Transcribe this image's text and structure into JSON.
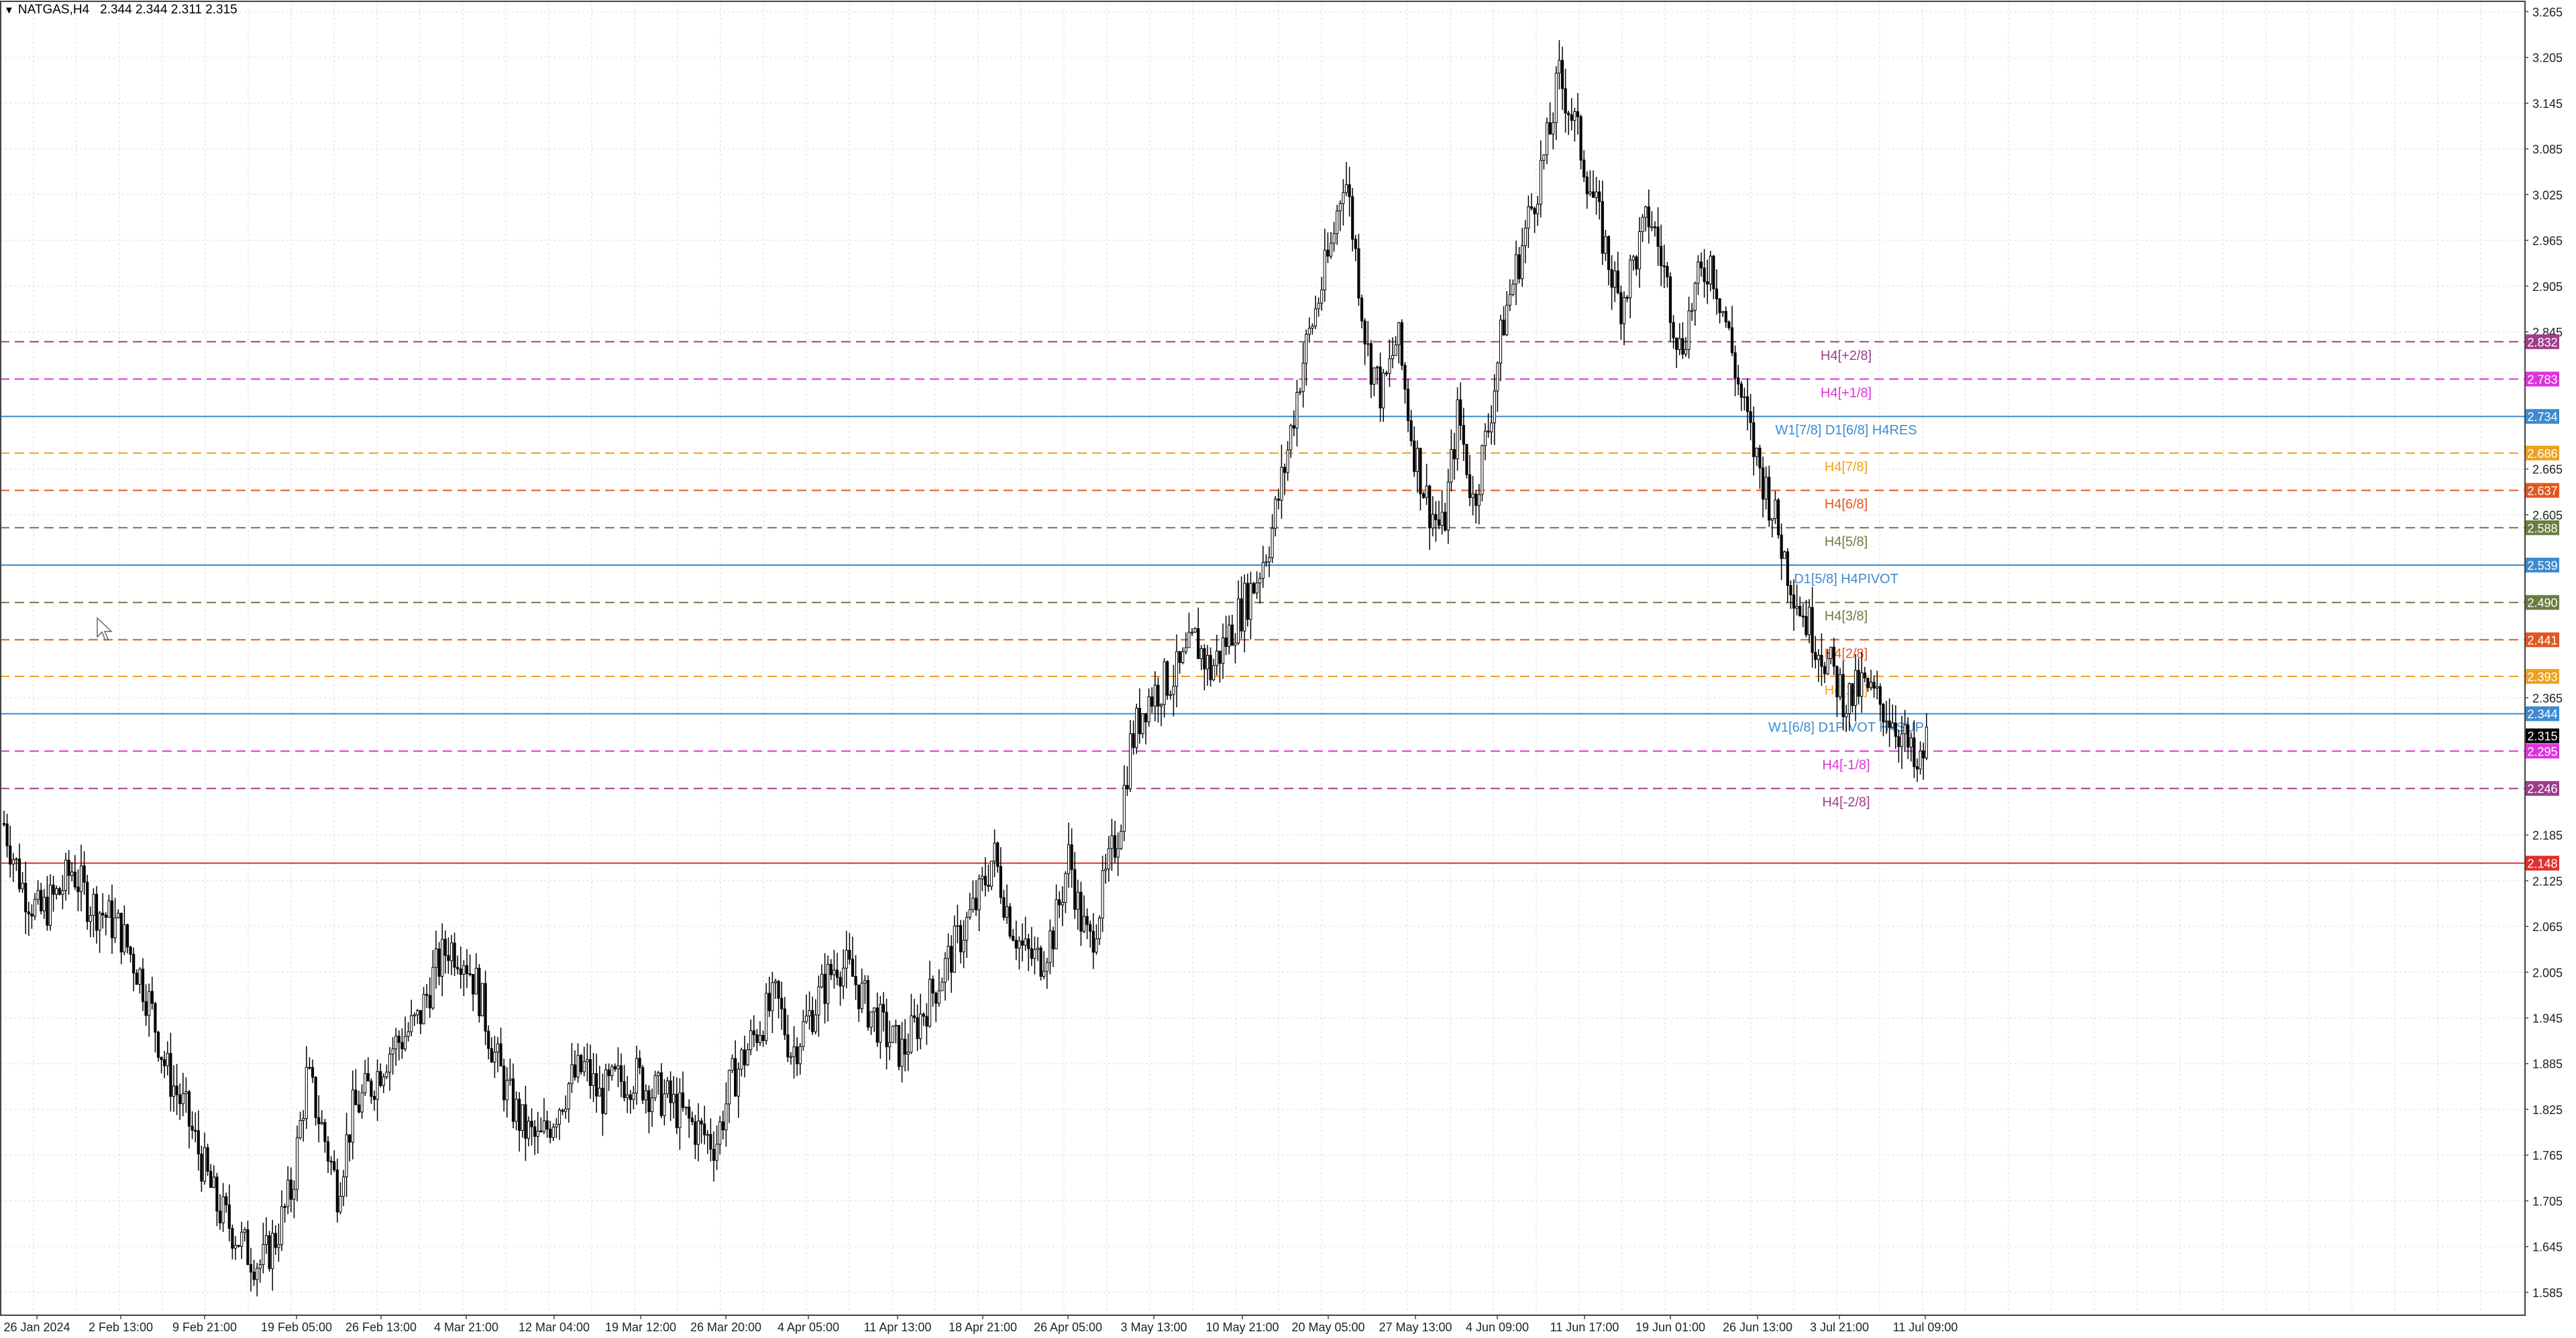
{
  "header": {
    "symbol": "NATGAS,H4",
    "ohlc": "2.344 2.344 2.311 2.315"
  },
  "chart_data": {
    "type": "candlestick",
    "symbol": "NATGAS",
    "timeframe": "H4",
    "ylim": [
      1.555,
      3.275
    ],
    "grid": true,
    "y_ticks": [
      "3.265",
      "3.205",
      "3.145",
      "3.085",
      "3.025",
      "2.965",
      "2.905",
      "2.845",
      "2.665",
      "2.605",
      "2.365",
      "2.185",
      "2.125",
      "2.065",
      "2.005",
      "1.945",
      "1.885",
      "1.825",
      "1.765",
      "1.705",
      "1.645",
      "1.585"
    ],
    "x_ticks": [
      "26 Jan 2024",
      "2 Feb 13:00",
      "9 Feb 21:00",
      "19 Feb 05:00",
      "26 Feb 13:00",
      "4 Mar 21:00",
      "12 Mar 04:00",
      "19 Mar 12:00",
      "26 Mar 20:00",
      "4 Apr 05:00",
      "11 Apr 13:00",
      "18 Apr 21:00",
      "26 Apr 05:00",
      "3 May 13:00",
      "10 May 21:00",
      "20 May 05:00",
      "27 May 13:00",
      "4 Jun 09:00",
      "11 Jun 17:00",
      "19 Jun 01:00",
      "26 Jun 13:00",
      "3 Jul 21:00",
      "11 Jul 09:00"
    ],
    "price_path": [
      [
        0,
        2.2
      ],
      [
        0.007,
        2.12
      ],
      [
        0.014,
        2.08
      ],
      [
        0.022,
        2.11
      ],
      [
        0.027,
        2.14
      ],
      [
        0.033,
        2.1
      ],
      [
        0.04,
        2.08
      ],
      [
        0.046,
        2.06
      ],
      [
        0.054,
        2.0
      ],
      [
        0.058,
        1.96
      ],
      [
        0.064,
        1.88
      ],
      [
        0.072,
        1.82
      ],
      [
        0.078,
        1.76
      ],
      [
        0.084,
        1.7
      ],
      [
        0.09,
        1.67
      ],
      [
        0.096,
        1.64
      ],
      [
        0.102,
        1.62
      ],
      [
        0.108,
        1.66
      ],
      [
        0.114,
        1.72
      ],
      [
        0.12,
        1.87
      ],
      [
        0.126,
        1.8
      ],
      [
        0.132,
        1.72
      ],
      [
        0.138,
        1.82
      ],
      [
        0.146,
        1.86
      ],
      [
        0.152,
        1.9
      ],
      [
        0.158,
        1.92
      ],
      [
        0.164,
        1.94
      ],
      [
        0.17,
        2.0
      ],
      [
        0.176,
        2.04
      ],
      [
        0.182,
        2.03
      ],
      [
        0.188,
        1.98
      ],
      [
        0.194,
        1.9
      ],
      [
        0.2,
        1.84
      ],
      [
        0.206,
        1.8
      ],
      [
        0.212,
        1.78
      ],
      [
        0.218,
        1.82
      ],
      [
        0.224,
        1.86
      ],
      [
        0.23,
        1.88
      ],
      [
        0.236,
        1.84
      ],
      [
        0.242,
        1.86
      ],
      [
        0.25,
        1.87
      ],
      [
        0.256,
        1.85
      ],
      [
        0.262,
        1.84
      ],
      [
        0.268,
        1.82
      ],
      [
        0.274,
        1.8
      ],
      [
        0.282,
        1.78
      ],
      [
        0.288,
        1.86
      ],
      [
        0.294,
        1.9
      ],
      [
        0.3,
        1.94
      ],
      [
        0.306,
        1.97
      ],
      [
        0.312,
        1.9
      ],
      [
        0.318,
        1.94
      ],
      [
        0.324,
        1.98
      ],
      [
        0.33,
        2.02
      ],
      [
        0.336,
        2.0
      ],
      [
        0.342,
        1.96
      ],
      [
        0.35,
        1.92
      ],
      [
        0.356,
        1.9
      ],
      [
        0.362,
        1.94
      ],
      [
        0.368,
        1.98
      ],
      [
        0.374,
        2.02
      ],
      [
        0.38,
        2.06
      ],
      [
        0.386,
        2.1
      ],
      [
        0.392,
        2.16
      ],
      [
        0.398,
        2.08
      ],
      [
        0.404,
        2.03
      ],
      [
        0.41,
        2.02
      ],
      [
        0.416,
        2.06
      ],
      [
        0.422,
        2.16
      ],
      [
        0.426,
        2.08
      ],
      [
        0.43,
        2.04
      ],
      [
        0.436,
        2.12
      ],
      [
        0.442,
        2.2
      ],
      [
        0.446,
        2.3
      ],
      [
        0.452,
        2.36
      ],
      [
        0.458,
        2.38
      ],
      [
        0.466,
        2.4
      ],
      [
        0.472,
        2.44
      ],
      [
        0.478,
        2.4
      ],
      [
        0.484,
        2.44
      ],
      [
        0.49,
        2.48
      ],
      [
        0.496,
        2.52
      ],
      [
        0.502,
        2.58
      ],
      [
        0.508,
        2.68
      ],
      [
        0.514,
        2.8
      ],
      [
        0.52,
        2.88
      ],
      [
        0.526,
        2.96
      ],
      [
        0.531,
        3.06
      ],
      [
        0.535,
        2.96
      ],
      [
        0.54,
        2.82
      ],
      [
        0.546,
        2.76
      ],
      [
        0.552,
        2.84
      ],
      [
        0.558,
        2.7
      ],
      [
        0.564,
        2.62
      ],
      [
        0.57,
        2.58
      ],
      [
        0.576,
        2.74
      ],
      [
        0.582,
        2.62
      ],
      [
        0.588,
        2.72
      ],
      [
        0.594,
        2.86
      ],
      [
        0.6,
        2.94
      ],
      [
        0.606,
        3.02
      ],
      [
        0.612,
        3.1
      ],
      [
        0.616,
        3.18
      ],
      [
        0.622,
        3.12
      ],
      [
        0.628,
        3.04
      ],
      [
        0.634,
        2.96
      ],
      [
        0.64,
        2.88
      ],
      [
        0.646,
        2.94
      ],
      [
        0.652,
        3.0
      ],
      [
        0.658,
        2.92
      ],
      [
        0.664,
        2.82
      ],
      [
        0.67,
        2.9
      ],
      [
        0.676,
        2.94
      ],
      [
        0.682,
        2.86
      ],
      [
        0.688,
        2.76
      ],
      [
        0.694,
        2.68
      ],
      [
        0.7,
        2.62
      ],
      [
        0.706,
        2.54
      ],
      [
        0.712,
        2.48
      ],
      [
        0.718,
        2.44
      ],
      [
        0.724,
        2.4
      ],
      [
        0.73,
        2.36
      ],
      [
        0.736,
        2.38
      ],
      [
        0.742,
        2.36
      ],
      [
        0.748,
        2.34
      ],
      [
        0.754,
        2.3
      ],
      [
        0.758,
        2.26
      ],
      [
        0.762,
        2.315
      ]
    ],
    "levels": [
      {
        "label": "H4[+2/8]",
        "value": "2.832",
        "color": "#9f3d8b",
        "style": "dash"
      },
      {
        "label": "H4[+1/8]",
        "value": "2.783",
        "color": "#dd33dd",
        "style": "dash"
      },
      {
        "label": "W1[7/8] D1[6/8] H4RES",
        "value": "2.734",
        "color": "#3c8bd1",
        "style": "solid"
      },
      {
        "label": "H4[7/8]",
        "value": "2.686",
        "color": "#f0a020",
        "style": "dash"
      },
      {
        "label": "H4[6/8]",
        "value": "2.637",
        "color": "#e05820",
        "style": "dash"
      },
      {
        "label": "H4[5/8]",
        "value": "2.588",
        "color": "#6b7b44",
        "style": "dash"
      },
      {
        "label": "D1[5/8] H4PIVOT",
        "value": "2.539",
        "color": "#3c8bd1",
        "style": "solid"
      },
      {
        "label": "H4[3/8]",
        "value": "2.490",
        "color": "#6b7b44",
        "style": "dash"
      },
      {
        "label": "H4[2/8]",
        "value": "2.441",
        "color": "#e05820",
        "style": "dash"
      },
      {
        "label": "H4[1/8]",
        "value": "2.393",
        "color": "#f0a020",
        "style": "dash"
      },
      {
        "label": "W1[6/8] D1PIVOT H4SUP",
        "value": "2.344",
        "color": "#3c8bd1",
        "style": "solid"
      },
      {
        "label": "H4[-1/8]",
        "value": "2.295",
        "color": "#dd33dd",
        "style": "dash"
      },
      {
        "label": "H4[-2/8]",
        "value": "2.246",
        "color": "#9f3d8b",
        "style": "dash"
      },
      {
        "label": "",
        "value": "2.148",
        "color": "#e03030",
        "style": "solid"
      }
    ],
    "current_price": "2.315",
    "colors": {
      "candle": "#000000",
      "grid": "#e6e6e6",
      "axis": "#444444",
      "current_bg": "#000000"
    }
  }
}
